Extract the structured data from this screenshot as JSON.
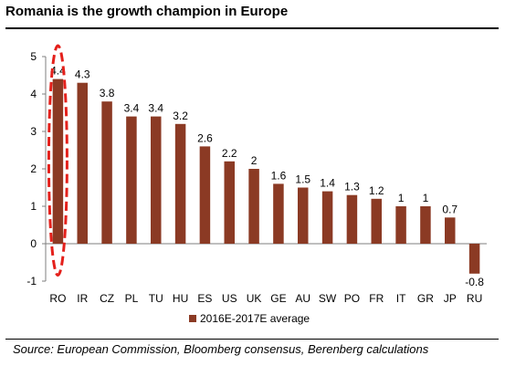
{
  "title": "Romania is the growth champion in Europe",
  "source": "Source: European Commission, Bloomberg consensus, Berenberg calculations",
  "chart_data": {
    "type": "bar",
    "title": "",
    "xlabel": "",
    "ylabel": "",
    "ylim": [
      -1,
      5
    ],
    "yticks": [
      -1,
      0,
      1,
      2,
      3,
      4,
      5
    ],
    "grid": false,
    "legend_position": "bottom",
    "categories": [
      "RO",
      "IR",
      "CZ",
      "PL",
      "TU",
      "HU",
      "ES",
      "US",
      "UK",
      "GE",
      "AU",
      "SW",
      "PO",
      "FR",
      "IT",
      "GR",
      "JP",
      "RU"
    ],
    "series": [
      {
        "name": "2016E-2017E average",
        "color": "#8b3a24",
        "values": [
          4.4,
          4.3,
          3.8,
          3.4,
          3.4,
          3.2,
          2.6,
          2.2,
          2,
          1.6,
          1.5,
          1.4,
          1.3,
          1.2,
          1,
          1,
          0.7,
          -0.8
        ]
      }
    ],
    "highlight": {
      "category": "RO",
      "style": "dashed-ellipse",
      "color": "#e4201b"
    }
  }
}
